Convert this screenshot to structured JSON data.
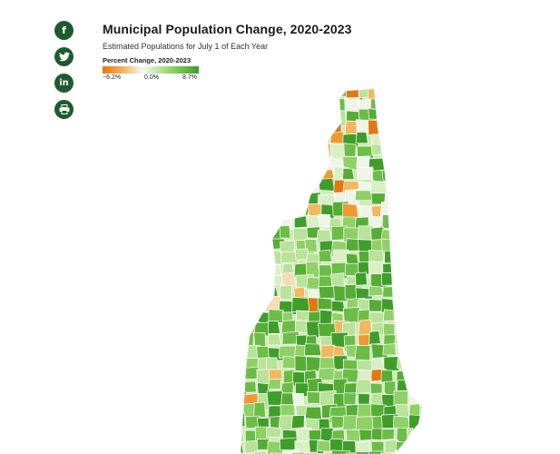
{
  "title": "Municipal Population Change, 2020-2023",
  "subtitle": "Estimated Populations for July 1 of Each Year",
  "legend": {
    "title": "Percent Change, 2020-2023",
    "min_label": "−6.2%",
    "mid_label": "0.0%",
    "max_label": "8.7%",
    "min": -6.2,
    "max": 8.7,
    "colors": {
      "strong_decline": "#e07a10",
      "decline": "#f2b860",
      "neutral": "#f7f7f2",
      "growth": "#8fd067",
      "strong_growth": "#3f9e2a"
    }
  },
  "share": [
    {
      "icon": "facebook-icon",
      "glyph": "f"
    },
    {
      "icon": "twitter-icon",
      "glyph": ""
    },
    {
      "icon": "linkedin-icon",
      "glyph": "in"
    },
    {
      "icon": "print-icon",
      "glyph": ""
    }
  ],
  "map": {
    "region": "New Hampshire municipalities",
    "fill_palette": [
      "#e07a10",
      "#ee9a30",
      "#f2b860",
      "#f5dcb4",
      "#eef5e6",
      "#d9efc6",
      "#b9e29a",
      "#8fd067",
      "#6cbd48",
      "#55ad35",
      "#3f9e2a"
    ],
    "boundary_color": "#ffffff"
  }
}
